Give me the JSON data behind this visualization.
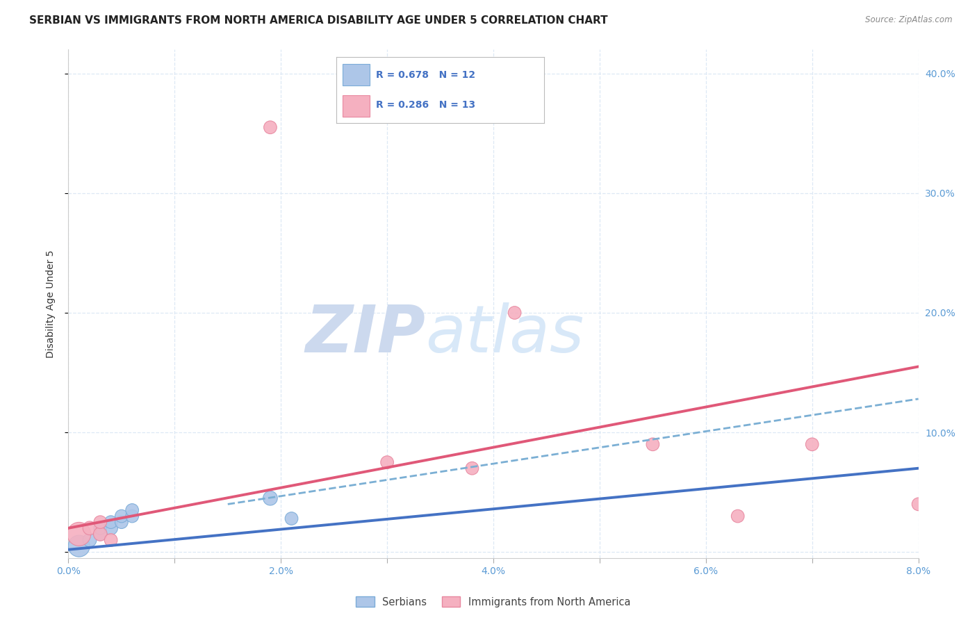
{
  "title": "SERBIAN VS IMMIGRANTS FROM NORTH AMERICA DISABILITY AGE UNDER 5 CORRELATION CHART",
  "source": "Source: ZipAtlas.com",
  "ylabel": "Disability Age Under 5",
  "xlim": [
    0.0,
    0.08
  ],
  "ylim": [
    -0.005,
    0.42
  ],
  "xticks": [
    0.0,
    0.01,
    0.02,
    0.03,
    0.04,
    0.05,
    0.06,
    0.07,
    0.08
  ],
  "xticklabels": [
    "0.0%",
    "",
    "2.0%",
    "",
    "4.0%",
    "",
    "6.0%",
    "",
    "8.0%"
  ],
  "yticks_right": [
    0.1,
    0.2,
    0.3,
    0.4
  ],
  "yticklabels_right": [
    "10.0%",
    "20.0%",
    "30.0%",
    "40.0%"
  ],
  "right_ytick_color": "#5b9bd5",
  "serbian_color": "#adc6e8",
  "serbian_edge_color": "#7bacd8",
  "immigrant_color": "#f5b0c0",
  "immigrant_edge_color": "#e888a0",
  "serbian_line_color": "#4472c4",
  "immigrant_line_color": "#e05878",
  "dashed_line_color": "#7bafd4",
  "serbian_points_x": [
    0.001,
    0.002,
    0.003,
    0.003,
    0.004,
    0.004,
    0.005,
    0.005,
    0.006,
    0.006,
    0.019,
    0.021
  ],
  "serbian_points_y": [
    0.005,
    0.01,
    0.015,
    0.02,
    0.02,
    0.025,
    0.025,
    0.03,
    0.03,
    0.035,
    0.045,
    0.028
  ],
  "serbian_sizes": [
    500,
    200,
    180,
    180,
    200,
    180,
    180,
    180,
    180,
    180,
    220,
    180
  ],
  "immigrant_points_x": [
    0.001,
    0.002,
    0.003,
    0.003,
    0.004,
    0.019,
    0.03,
    0.038,
    0.042,
    0.055,
    0.063,
    0.07,
    0.08
  ],
  "immigrant_points_y": [
    0.015,
    0.02,
    0.015,
    0.025,
    0.01,
    0.355,
    0.075,
    0.07,
    0.2,
    0.09,
    0.03,
    0.09,
    0.04
  ],
  "immigrant_sizes": [
    600,
    200,
    200,
    180,
    180,
    180,
    180,
    180,
    180,
    180,
    180,
    180,
    180
  ],
  "serbian_trend_x": [
    0.0,
    0.08
  ],
  "serbian_trend_y": [
    0.002,
    0.07
  ],
  "immigrant_trend_x": [
    0.0,
    0.08
  ],
  "immigrant_trend_y": [
    0.02,
    0.155
  ],
  "dashed_trend_x": [
    0.015,
    0.08
  ],
  "dashed_trend_y": [
    0.04,
    0.128
  ],
  "watermark_zip": "ZIP",
  "watermark_atlas": "atlas",
  "watermark_color": "#ccd9ee",
  "background_color": "#ffffff",
  "grid_color": "#dde8f5",
  "title_fontsize": 11,
  "axis_label_fontsize": 10,
  "tick_fontsize": 10,
  "legend_r1_color": "#4472c4",
  "legend_r2_color": "#e05878"
}
